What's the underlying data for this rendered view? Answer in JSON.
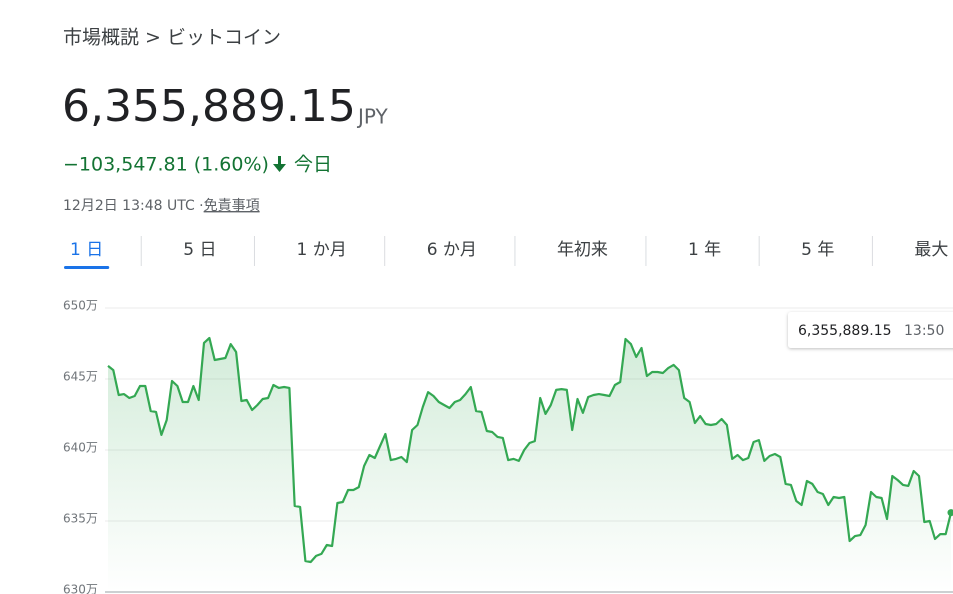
{
  "breadcrumb": "市場概説 > ビットコイン",
  "price": {
    "value": "6,355,889.15",
    "currency": "JPY"
  },
  "change": {
    "value": "−103,547.81 (1.60%)",
    "period": "今日"
  },
  "timestamp": "12月2日 13:48 UTC · ",
  "disclaimer": "免責事項",
  "tabs": [
    "1 日",
    "5 日",
    "1 か月",
    "6 か月",
    "年初来",
    "1 年",
    "5 年",
    "最大"
  ],
  "tooltip": {
    "value": "6,355,889.15",
    "time": "13:50"
  },
  "chart_data": {
    "type": "line",
    "color": "#34a853",
    "grid": true,
    "ylim": [
      6300000,
      6500000
    ],
    "yticks": [
      {
        "value": 6300000,
        "label": "630万"
      },
      {
        "value": 6350000,
        "label": "635万"
      },
      {
        "value": 6400000,
        "label": "640万"
      },
      {
        "value": 6450000,
        "label": "645万"
      },
      {
        "value": 6500000,
        "label": "650万"
      }
    ],
    "values": [
      6459200,
      6456300,
      6438700,
      6439400,
      6436600,
      6438000,
      6445100,
      6445100,
      6427500,
      6426800,
      6410600,
      6421100,
      6448600,
      6445100,
      6433800,
      6433800,
      6445100,
      6435200,
      6475400,
      6478900,
      6463400,
      6464100,
      6464800,
      6474600,
      6469000,
      6434500,
      6435200,
      6428200,
      6431700,
      6435900,
      6436600,
      6445800,
      6443700,
      6444400,
      6443700,
      6360600,
      6359900,
      6321800,
      6321100,
      6325400,
      6326800,
      6333100,
      6332400,
      6362700,
      6363400,
      6371800,
      6371800,
      6373900,
      6388700,
      6396500,
      6394400,
      6402800,
      6411300,
      6392900,
      6393700,
      6395100,
      6391500,
      6414100,
      6417600,
      6430300,
      6440800,
      6438000,
      6433800,
      6431700,
      6429600,
      6433800,
      6435200,
      6439400,
      6444400,
      6427500,
      6426800,
      6413400,
      6412700,
      6409200,
      6408500,
      6392900,
      6393700,
      6392300,
      6400000,
      6404900,
      6406300,
      6436600,
      6425400,
      6431700,
      6442300,
      6442900,
      6442300,
      6414100,
      6435900,
      6426100,
      6437300,
      6438700,
      6439400,
      6438700,
      6438000,
      6445800,
      6447900,
      6478200,
      6474600,
      6465500,
      6471800,
      6452100,
      6454900,
      6454900,
      6454200,
      6457700,
      6459900,
      6456300,
      6436600,
      6433800,
      6419000,
      6423900,
      6418300,
      6417600,
      6418300,
      6421800,
      6417600,
      6393700,
      6396500,
      6392900,
      6394400,
      6405600,
      6407000,
      6392300,
      6395800,
      6397200,
      6395100,
      6376100,
      6375400,
      6364100,
      6361300,
      6378200,
      6376100,
      6370400,
      6369000,
      6361300,
      6366900,
      6366200,
      6366900,
      6335900,
      6339400,
      6340100,
      6347200,
      6370400,
      6366900,
      6366200,
      6351400,
      6381700,
      6378900,
      6375400,
      6374700,
      6385200,
      6381700,
      6349300,
      6350000,
      6337300,
      6340800,
      6340800,
      6355889.15
    ]
  }
}
